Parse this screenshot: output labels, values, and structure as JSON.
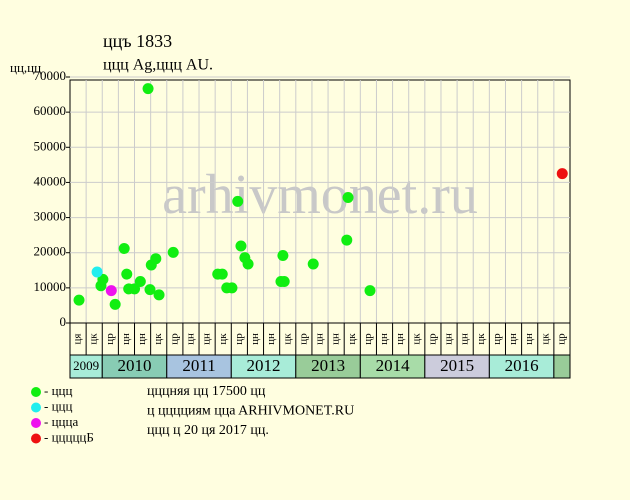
{
  "chart_data": {
    "type": "scatter",
    "title": "ццъ 1833",
    "subtitle": "ццц  Ag,ццц  AU.",
    "y_label": "цц,цц",
    "watermark": "arhivmonet.ru",
    "xlim": [
      2009.5,
      2017.25
    ],
    "ylim": [
      0,
      70000
    ],
    "yticks": [
      0,
      10000,
      20000,
      30000,
      40000,
      50000,
      60000,
      70000
    ],
    "grid": true,
    "categories": [
      "ця",
      "цк",
      "цр",
      "цн",
      "цн",
      "цк",
      "цр",
      "цн",
      "цн",
      "цк",
      "цр",
      "цн",
      "цн",
      "цк",
      "цр",
      "цн",
      "цн",
      "цк",
      "цр",
      "цн",
      "цн",
      "цк",
      "цр",
      "цн",
      "цн",
      "цк",
      "цр",
      "цн",
      "цн",
      "цк",
      "цр"
    ],
    "year_labels": [
      "2009",
      "2010",
      "2011",
      "2012",
      "2013",
      "2014",
      "2015",
      "2016",
      null
    ],
    "year_colors": [
      "#a8ecd8",
      "#88ccb4",
      "#a8c4e0",
      "#a8ecd8",
      "#99cc99",
      "#a8dca8",
      "#ccccdc",
      "#a8ecd8",
      "#99cc99"
    ],
    "series": [
      {
        "name": "- ццц",
        "color": "#11ee11",
        "x": [
          2009.64,
          2009.98,
          2010.01,
          2010.2,
          2010.34,
          2010.38,
          2010.41,
          2010.5,
          2010.59,
          2010.71,
          2010.74,
          2010.76,
          2010.83,
          2010.88,
          2011.1,
          2011.79,
          2011.86,
          2011.93,
          2012.01,
          2012.1,
          2012.15,
          2012.21,
          2012.26,
          2012.77,
          2012.8,
          2012.82,
          2013.27,
          2013.79,
          2013.81,
          2014.15
        ],
        "values": [
          6500,
          10600,
          12400,
          5300,
          21200,
          13900,
          9700,
          9700,
          11800,
          66700,
          9500,
          16500,
          18300,
          8000,
          20100,
          13900,
          13900,
          10000,
          10000,
          34600,
          21900,
          18600,
          16800,
          11800,
          19200,
          11800,
          16800,
          23600,
          35700,
          9200
        ]
      },
      {
        "name": "- ццц",
        "color": "#22eeee",
        "x": [
          2009.92
        ],
        "values": [
          14500
        ]
      },
      {
        "name": "- ццца",
        "color": "#ee11ee",
        "x": [
          2010.14
        ],
        "values": [
          9200
        ]
      },
      {
        "name": "- цццццБ",
        "color": "#ee1111",
        "x": [
          2017.13
        ],
        "values": [
          42500
        ]
      }
    ],
    "notes": [
      "цццняя цц 17500 цц",
      "ц цццциям ццa ARHIVMONET.RU",
      "ццц ц 20 ця 2017 цц."
    ]
  }
}
